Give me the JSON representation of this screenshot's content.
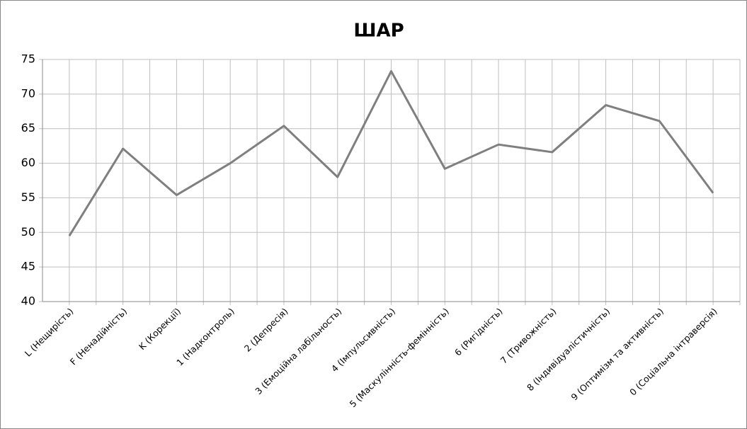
{
  "chart_data": {
    "type": "line",
    "title": "ШАР",
    "categories": [
      "L (Нещирість)",
      "F (Ненадійність)",
      "K (Корекції)",
      "1 (Надконтроль)",
      "2 (Депресія)",
      "3 (Емоційна лабільность)",
      "4 (Імпульсивність)",
      "5 (Маскулінність-фемінність)",
      "6 (Ригідність)",
      "7 (Тривожність)",
      "8 (Індивідуалістичність)",
      "9 (Оптимізм та активність)",
      "0 (Соціальна інтраверсія)"
    ],
    "series": [
      {
        "name": "ШАР",
        "color": "#7f7f7f",
        "values": [
          49.5,
          62.1,
          55.4,
          60.0,
          65.4,
          58.0,
          73.3,
          59.2,
          62.7,
          61.6,
          68.4,
          66.1,
          55.7
        ]
      }
    ],
    "ylim": [
      40,
      75
    ],
    "yticks": [
      40,
      45,
      50,
      55,
      60,
      65,
      70,
      75
    ],
    "grid": true
  }
}
